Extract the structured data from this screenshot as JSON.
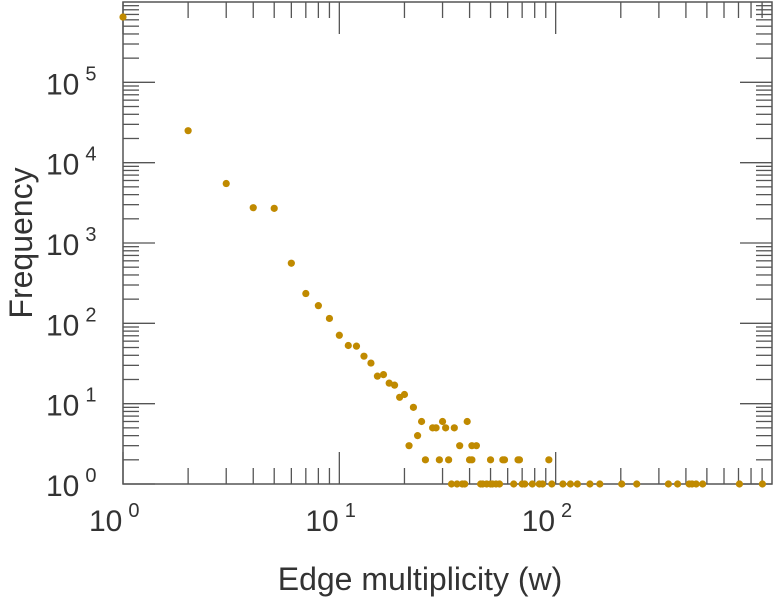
{
  "chart_data": {
    "type": "scatter",
    "title": "",
    "xlabel": "Edge multiplicity (w)",
    "ylabel": "Frequency",
    "xscale": "log",
    "yscale": "log",
    "xlim": [
      1,
      1000
    ],
    "ylim": [
      1,
      1000000
    ],
    "grid": false,
    "marker_color": "#c08a00",
    "x_ticks": [
      {
        "base": "10",
        "exp": "0",
        "value": 1
      },
      {
        "base": "10",
        "exp": "1",
        "value": 10
      },
      {
        "base": "10",
        "exp": "2",
        "value": 100
      }
    ],
    "y_ticks": [
      {
        "base": "10",
        "exp": "0",
        "value": 1
      },
      {
        "base": "10",
        "exp": "1",
        "value": 10
      },
      {
        "base": "10",
        "exp": "2",
        "value": 100
      },
      {
        "base": "10",
        "exp": "3",
        "value": 1000
      },
      {
        "base": "10",
        "exp": "4",
        "value": 10000
      },
      {
        "base": "10",
        "exp": "5",
        "value": 100000
      }
    ],
    "points": [
      [
        1,
        650000
      ],
      [
        2,
        25000
      ],
      [
        3,
        5500
      ],
      [
        4,
        2750
      ],
      [
        5,
        2700
      ],
      [
        6,
        560
      ],
      [
        7,
        235
      ],
      [
        8,
        166
      ],
      [
        9,
        115
      ],
      [
        10,
        71
      ],
      [
        11,
        53
      ],
      [
        12,
        52
      ],
      [
        13,
        39
      ],
      [
        14,
        32
      ],
      [
        15,
        22
      ],
      [
        16,
        23
      ],
      [
        17,
        18
      ],
      [
        18,
        17
      ],
      [
        19,
        12
      ],
      [
        20,
        13
      ],
      [
        21,
        3
      ],
      [
        22,
        9
      ],
      [
        23,
        4
      ],
      [
        24,
        6
      ],
      [
        25,
        2
      ],
      [
        27,
        5
      ],
      [
        28,
        5
      ],
      [
        29,
        2
      ],
      [
        30,
        6
      ],
      [
        31,
        5
      ],
      [
        32,
        2
      ],
      [
        33,
        1
      ],
      [
        34,
        5
      ],
      [
        35,
        1
      ],
      [
        36,
        3
      ],
      [
        37,
        1
      ],
      [
        38,
        1
      ],
      [
        39,
        6
      ],
      [
        40,
        2
      ],
      [
        41,
        2
      ],
      [
        41,
        3
      ],
      [
        43,
        3
      ],
      [
        45,
        1
      ],
      [
        46,
        1
      ],
      [
        48,
        1
      ],
      [
        50,
        2
      ],
      [
        50,
        1
      ],
      [
        51,
        1
      ],
      [
        53,
        1
      ],
      [
        55,
        1
      ],
      [
        57,
        2
      ],
      [
        58,
        2
      ],
      [
        64,
        1
      ],
      [
        67,
        2
      ],
      [
        68,
        2
      ],
      [
        70,
        1
      ],
      [
        72,
        1
      ],
      [
        78,
        1
      ],
      [
        84,
        1
      ],
      [
        87,
        1
      ],
      [
        93,
        2
      ],
      [
        96,
        1
      ],
      [
        108,
        1
      ],
      [
        117,
        1
      ],
      [
        126,
        1
      ],
      [
        144,
        1
      ],
      [
        160,
        1
      ],
      [
        202,
        1
      ],
      [
        237,
        1
      ],
      [
        332,
        1
      ],
      [
        366,
        1
      ],
      [
        414,
        1
      ],
      [
        427,
        1
      ],
      [
        446,
        1
      ],
      [
        478,
        1
      ],
      [
        707,
        1
      ],
      [
        903,
        1
      ]
    ]
  }
}
